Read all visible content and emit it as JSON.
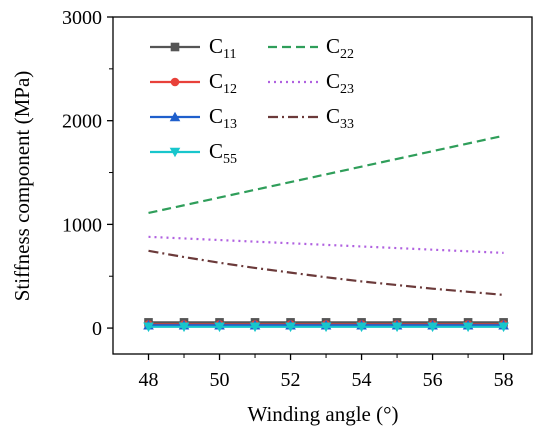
{
  "chart_data": {
    "type": "line",
    "xlabel": "Winding angle (°)",
    "ylabel": "Stiffness component (MPa)",
    "xlim": [
      47,
      58.8
    ],
    "ylim": [
      -250,
      3000
    ],
    "xticks": [
      48,
      50,
      52,
      54,
      56,
      58
    ],
    "yticks": [
      0,
      1000,
      2000,
      3000
    ],
    "grid": false,
    "legend_position": "top-left",
    "series": [
      {
        "name": "C11",
        "label_main": "C",
        "label_sub": "11",
        "color": "#555555",
        "dash": "solid",
        "marker": "square",
        "x": [
          48,
          49,
          50,
          51,
          52,
          53,
          54,
          55,
          56,
          57,
          58
        ],
        "y": [
          55,
          55,
          55,
          55,
          55,
          55,
          55,
          55,
          55,
          55,
          55
        ]
      },
      {
        "name": "C12",
        "label_main": "C",
        "label_sub": "12",
        "color": "#e8413a",
        "dash": "solid",
        "marker": "circle",
        "x": [
          48,
          49,
          50,
          51,
          52,
          53,
          54,
          55,
          56,
          57,
          58
        ],
        "y": [
          35,
          35,
          35,
          35,
          35,
          35,
          35,
          35,
          35,
          35,
          35
        ]
      },
      {
        "name": "C13",
        "label_main": "C",
        "label_sub": "13",
        "color": "#1f5fcc",
        "dash": "solid",
        "marker": "triangle-up",
        "x": [
          48,
          49,
          50,
          51,
          52,
          53,
          54,
          55,
          56,
          57,
          58
        ],
        "y": [
          28,
          28,
          28,
          28,
          28,
          28,
          28,
          28,
          28,
          28,
          28
        ]
      },
      {
        "name": "C55",
        "label_main": "C",
        "label_sub": "55",
        "color": "#18c6cc",
        "dash": "solid",
        "marker": "triangle-down",
        "x": [
          48,
          49,
          50,
          51,
          52,
          53,
          54,
          55,
          56,
          57,
          58
        ],
        "y": [
          12,
          12,
          12,
          12,
          12,
          12,
          12,
          12,
          12,
          12,
          12
        ]
      },
      {
        "name": "C22",
        "label_main": "C",
        "label_sub": "22",
        "color": "#2f9e5a",
        "dash": "dashed",
        "marker": "none",
        "x": [
          48,
          58
        ],
        "y": [
          1110,
          1855
        ]
      },
      {
        "name": "C23",
        "label_main": "C",
        "label_sub": "23",
        "color": "#b061e0",
        "dash": "dotted",
        "marker": "none",
        "x": [
          48,
          58
        ],
        "y": [
          880,
          725
        ]
      },
      {
        "name": "C33",
        "label_main": "C",
        "label_sub": "33",
        "color": "#6b3a3a",
        "dash": "dashdot",
        "marker": "none",
        "x": [
          48,
          49,
          50,
          51,
          52,
          53,
          54,
          55,
          56,
          57,
          58
        ],
        "y": [
          745,
          685,
          630,
          580,
          535,
          490,
          450,
          415,
          380,
          350,
          320
        ]
      }
    ]
  }
}
